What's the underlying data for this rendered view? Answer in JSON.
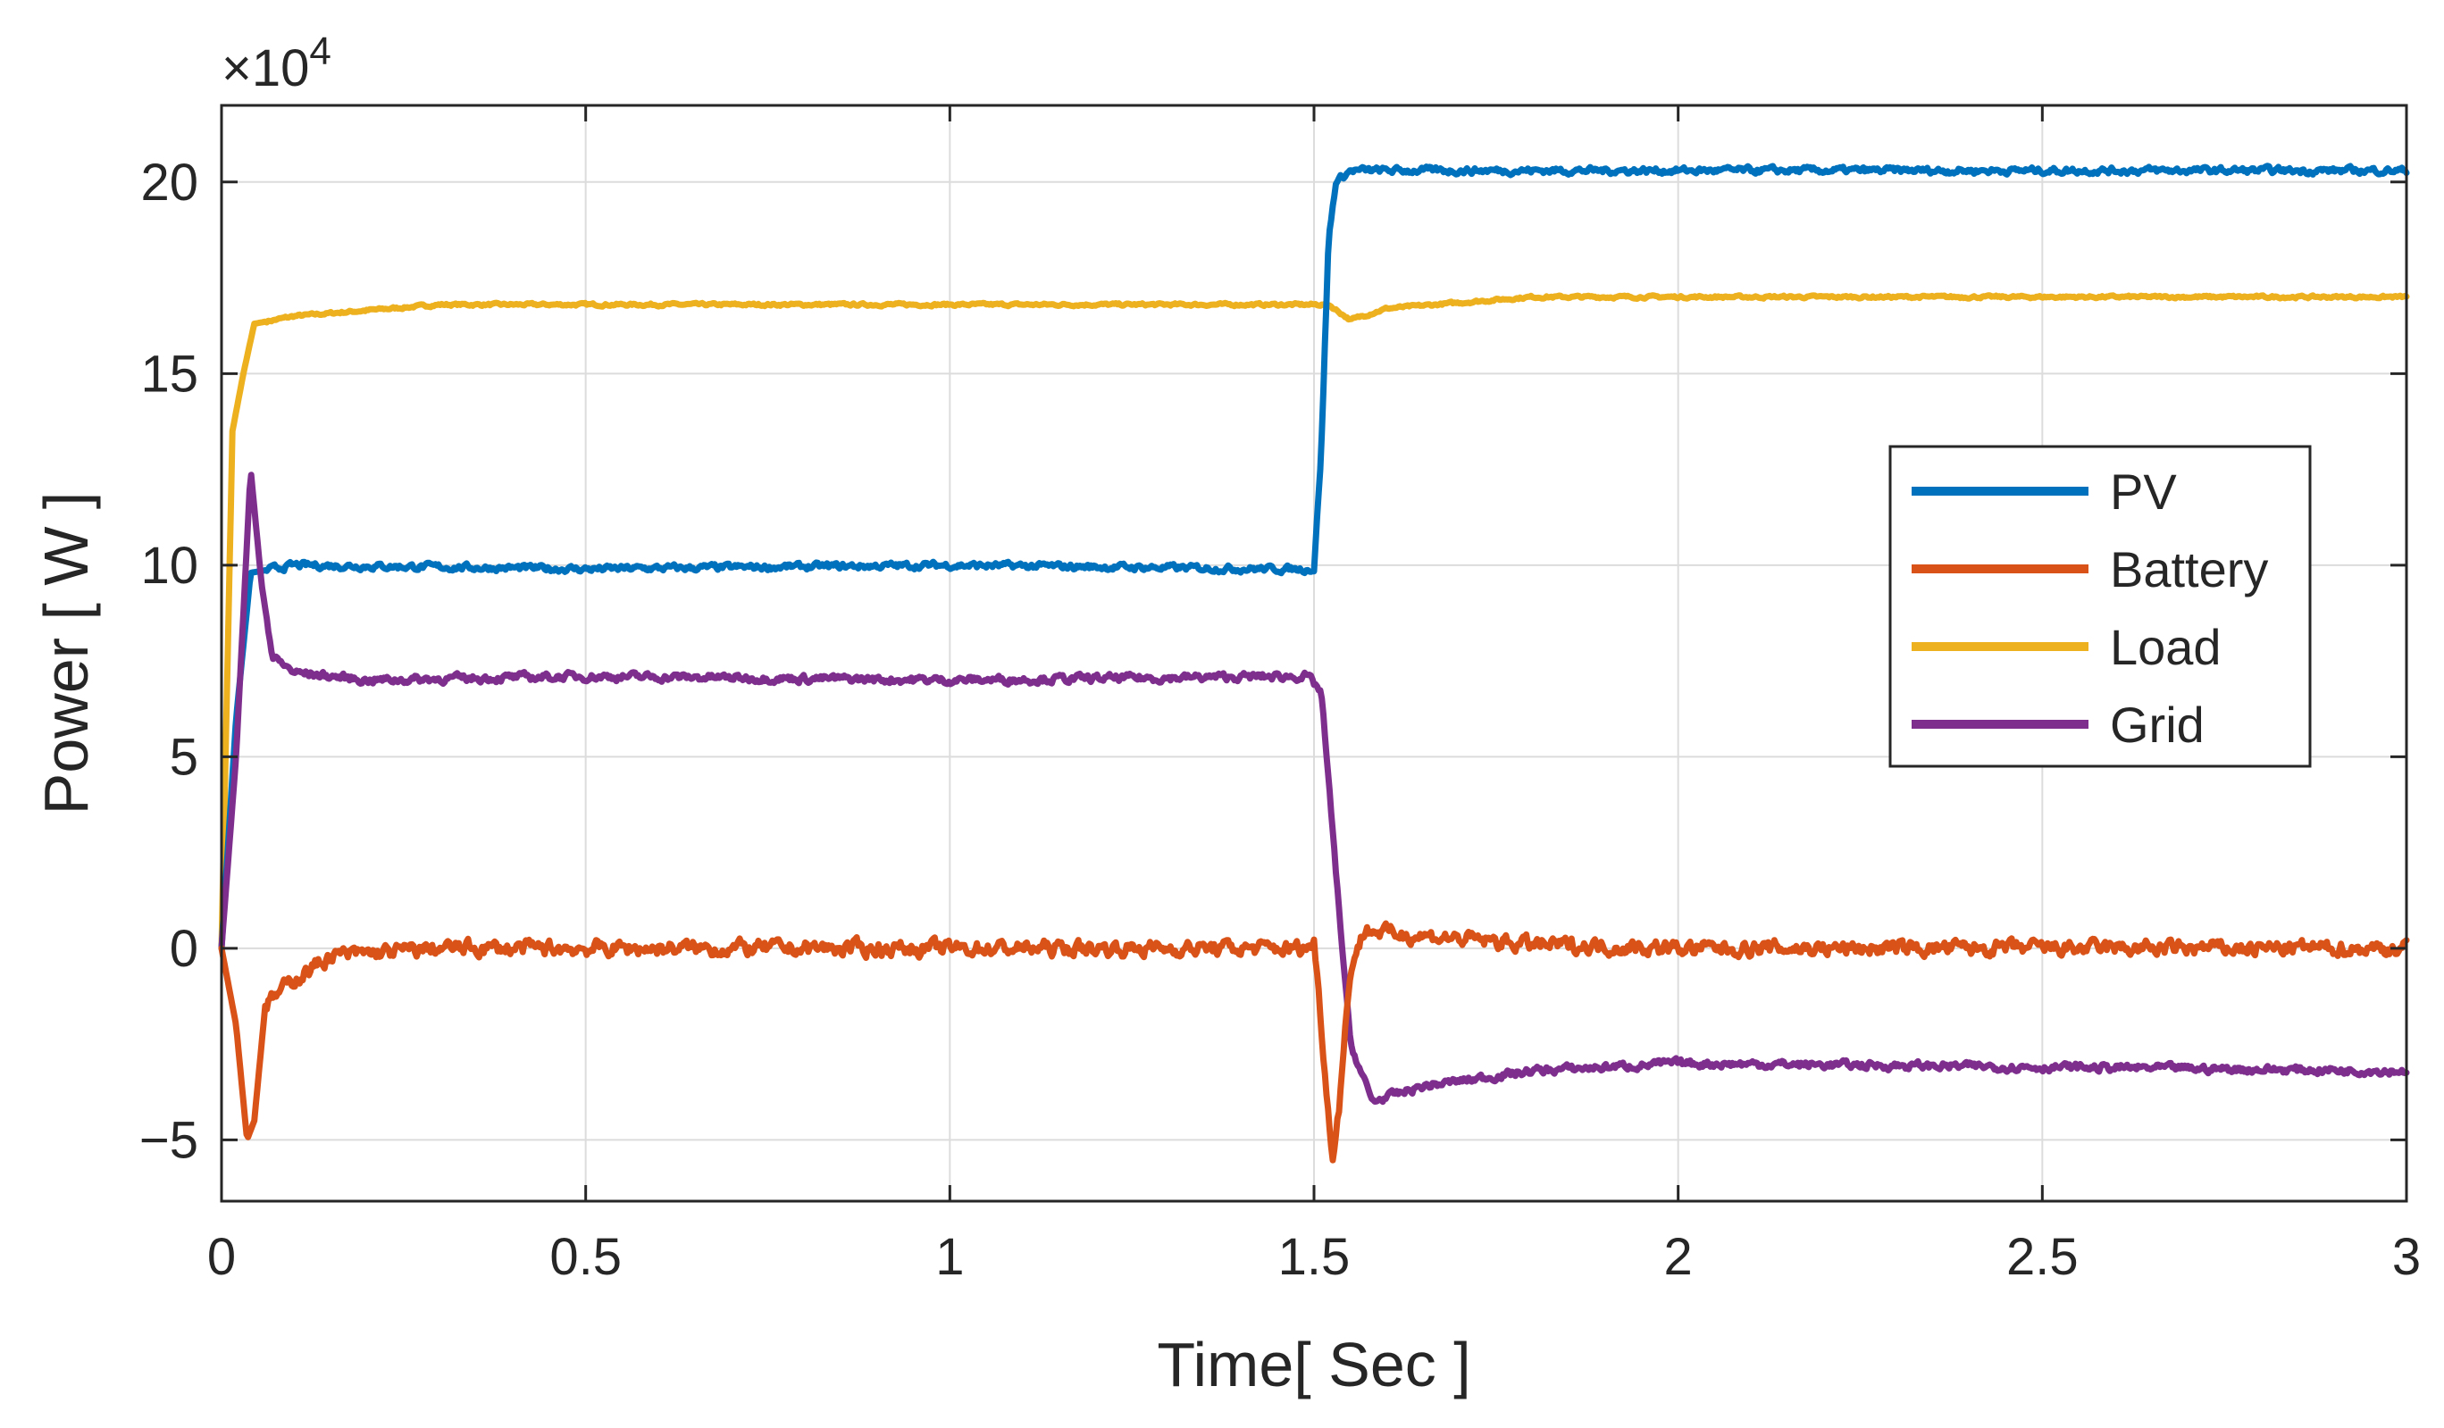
{
  "chart_data": {
    "type": "line",
    "title": "",
    "xlabel": "Time[ Sec ]",
    "ylabel": "Power [ W ]",
    "xlim": [
      0,
      3
    ],
    "ylim": [
      -6.6,
      22
    ],
    "y_multiplier_label": "×10",
    "y_multiplier_exponent": "4",
    "xticks": [
      0,
      0.5,
      1,
      1.5,
      2,
      2.5,
      3
    ],
    "xtick_labels": [
      "0",
      "0.5",
      "1",
      "1.5",
      "2",
      "2.5",
      "3"
    ],
    "yticks": [
      -5,
      0,
      5,
      10,
      15,
      20
    ],
    "ytick_labels": [
      "−5",
      "0",
      "5",
      "10",
      "15",
      "20"
    ],
    "grid": true,
    "legend_position": "right-middle",
    "series": [
      {
        "name": "PV",
        "color": "#0072BD",
        "noise": 0.15,
        "points": [
          [
            0,
            0
          ],
          [
            0.02,
            6
          ],
          [
            0.04,
            9.8
          ],
          [
            0.1,
            10
          ],
          [
            0.5,
            9.9
          ],
          [
            1.0,
            10
          ],
          [
            1.45,
            9.9
          ],
          [
            1.5,
            9.9
          ],
          [
            1.51,
            13
          ],
          [
            1.52,
            18.5
          ],
          [
            1.53,
            20
          ],
          [
            1.55,
            20.3
          ],
          [
            2.0,
            20.3
          ],
          [
            2.5,
            20.3
          ],
          [
            3.0,
            20.3
          ]
        ]
      },
      {
        "name": "Battery",
        "color": "#D95319",
        "noise": 0.35,
        "points": [
          [
            0,
            0
          ],
          [
            0.02,
            -2
          ],
          [
            0.035,
            -5
          ],
          [
            0.045,
            -4.5
          ],
          [
            0.06,
            -1.5
          ],
          [
            0.1,
            -0.8
          ],
          [
            0.15,
            -0.2
          ],
          [
            0.3,
            0
          ],
          [
            1.49,
            0
          ],
          [
            1.5,
            0.2
          ],
          [
            1.51,
            -2
          ],
          [
            1.525,
            -5.5
          ],
          [
            1.535,
            -4
          ],
          [
            1.55,
            -0.5
          ],
          [
            1.57,
            0.5
          ],
          [
            1.6,
            0.4
          ],
          [
            1.8,
            0.1
          ],
          [
            2.0,
            0
          ],
          [
            3.0,
            0
          ]
        ]
      },
      {
        "name": "Load",
        "color": "#EDB120",
        "noise": 0.06,
        "points": [
          [
            0,
            0
          ],
          [
            0.015,
            13.5
          ],
          [
            0.03,
            15
          ],
          [
            0.045,
            16.3
          ],
          [
            0.1,
            16.5
          ],
          [
            0.3,
            16.8
          ],
          [
            1.0,
            16.8
          ],
          [
            1.48,
            16.8
          ],
          [
            1.52,
            16.8
          ],
          [
            1.55,
            16.4
          ],
          [
            1.6,
            16.7
          ],
          [
            1.8,
            17
          ],
          [
            2.0,
            17
          ],
          [
            3.0,
            17
          ]
        ]
      },
      {
        "name": "Grid",
        "color": "#7E2F8E",
        "noise": 0.18,
        "points": [
          [
            0,
            0
          ],
          [
            0.02,
            5
          ],
          [
            0.04,
            12.5
          ],
          [
            0.055,
            9.5
          ],
          [
            0.07,
            7.6
          ],
          [
            0.1,
            7.2
          ],
          [
            0.2,
            7.0
          ],
          [
            0.5,
            7.1
          ],
          [
            1.0,
            7.0
          ],
          [
            1.49,
            7.1
          ],
          [
            1.51,
            6.7
          ],
          [
            1.53,
            2
          ],
          [
            1.55,
            -2.5
          ],
          [
            1.58,
            -4
          ],
          [
            1.65,
            -3.6
          ],
          [
            1.8,
            -3.2
          ],
          [
            2.0,
            -3.0
          ],
          [
            2.5,
            -3.1
          ],
          [
            3.0,
            -3.2
          ]
        ]
      }
    ]
  }
}
